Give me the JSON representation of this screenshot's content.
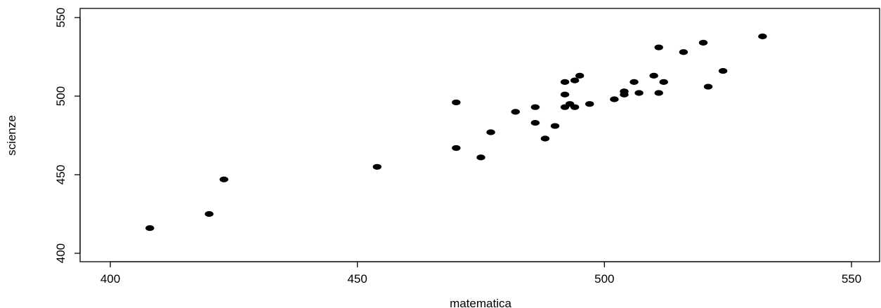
{
  "chart_data": {
    "type": "scatter",
    "title": "",
    "xlabel": "matematica",
    "ylabel": "scienze",
    "xlim": [
      400,
      550
    ],
    "ylim": [
      400,
      550
    ],
    "x_ticks": [
      400,
      450,
      500,
      550
    ],
    "y_ticks": [
      400,
      450,
      500,
      550
    ],
    "grid": false,
    "point_color": "#000000",
    "points": [
      {
        "x": 408,
        "y": 416
      },
      {
        "x": 420,
        "y": 425
      },
      {
        "x": 423,
        "y": 447
      },
      {
        "x": 454,
        "y": 455
      },
      {
        "x": 470,
        "y": 496
      },
      {
        "x": 470,
        "y": 467
      },
      {
        "x": 475,
        "y": 461
      },
      {
        "x": 477,
        "y": 477
      },
      {
        "x": 482,
        "y": 490
      },
      {
        "x": 486,
        "y": 493
      },
      {
        "x": 486,
        "y": 483
      },
      {
        "x": 488,
        "y": 473
      },
      {
        "x": 490,
        "y": 481
      },
      {
        "x": 492,
        "y": 509
      },
      {
        "x": 492,
        "y": 501
      },
      {
        "x": 492,
        "y": 493
      },
      {
        "x": 493,
        "y": 495
      },
      {
        "x": 494,
        "y": 510
      },
      {
        "x": 494,
        "y": 493
      },
      {
        "x": 495,
        "y": 513
      },
      {
        "x": 497,
        "y": 495
      },
      {
        "x": 502,
        "y": 498
      },
      {
        "x": 504,
        "y": 503
      },
      {
        "x": 504,
        "y": 501
      },
      {
        "x": 506,
        "y": 509
      },
      {
        "x": 507,
        "y": 502
      },
      {
        "x": 510,
        "y": 513
      },
      {
        "x": 511,
        "y": 531
      },
      {
        "x": 511,
        "y": 502
      },
      {
        "x": 512,
        "y": 509
      },
      {
        "x": 516,
        "y": 528
      },
      {
        "x": 520,
        "y": 534
      },
      {
        "x": 521,
        "y": 506
      },
      {
        "x": 524,
        "y": 516
      },
      {
        "x": 532,
        "y": 538
      }
    ]
  }
}
